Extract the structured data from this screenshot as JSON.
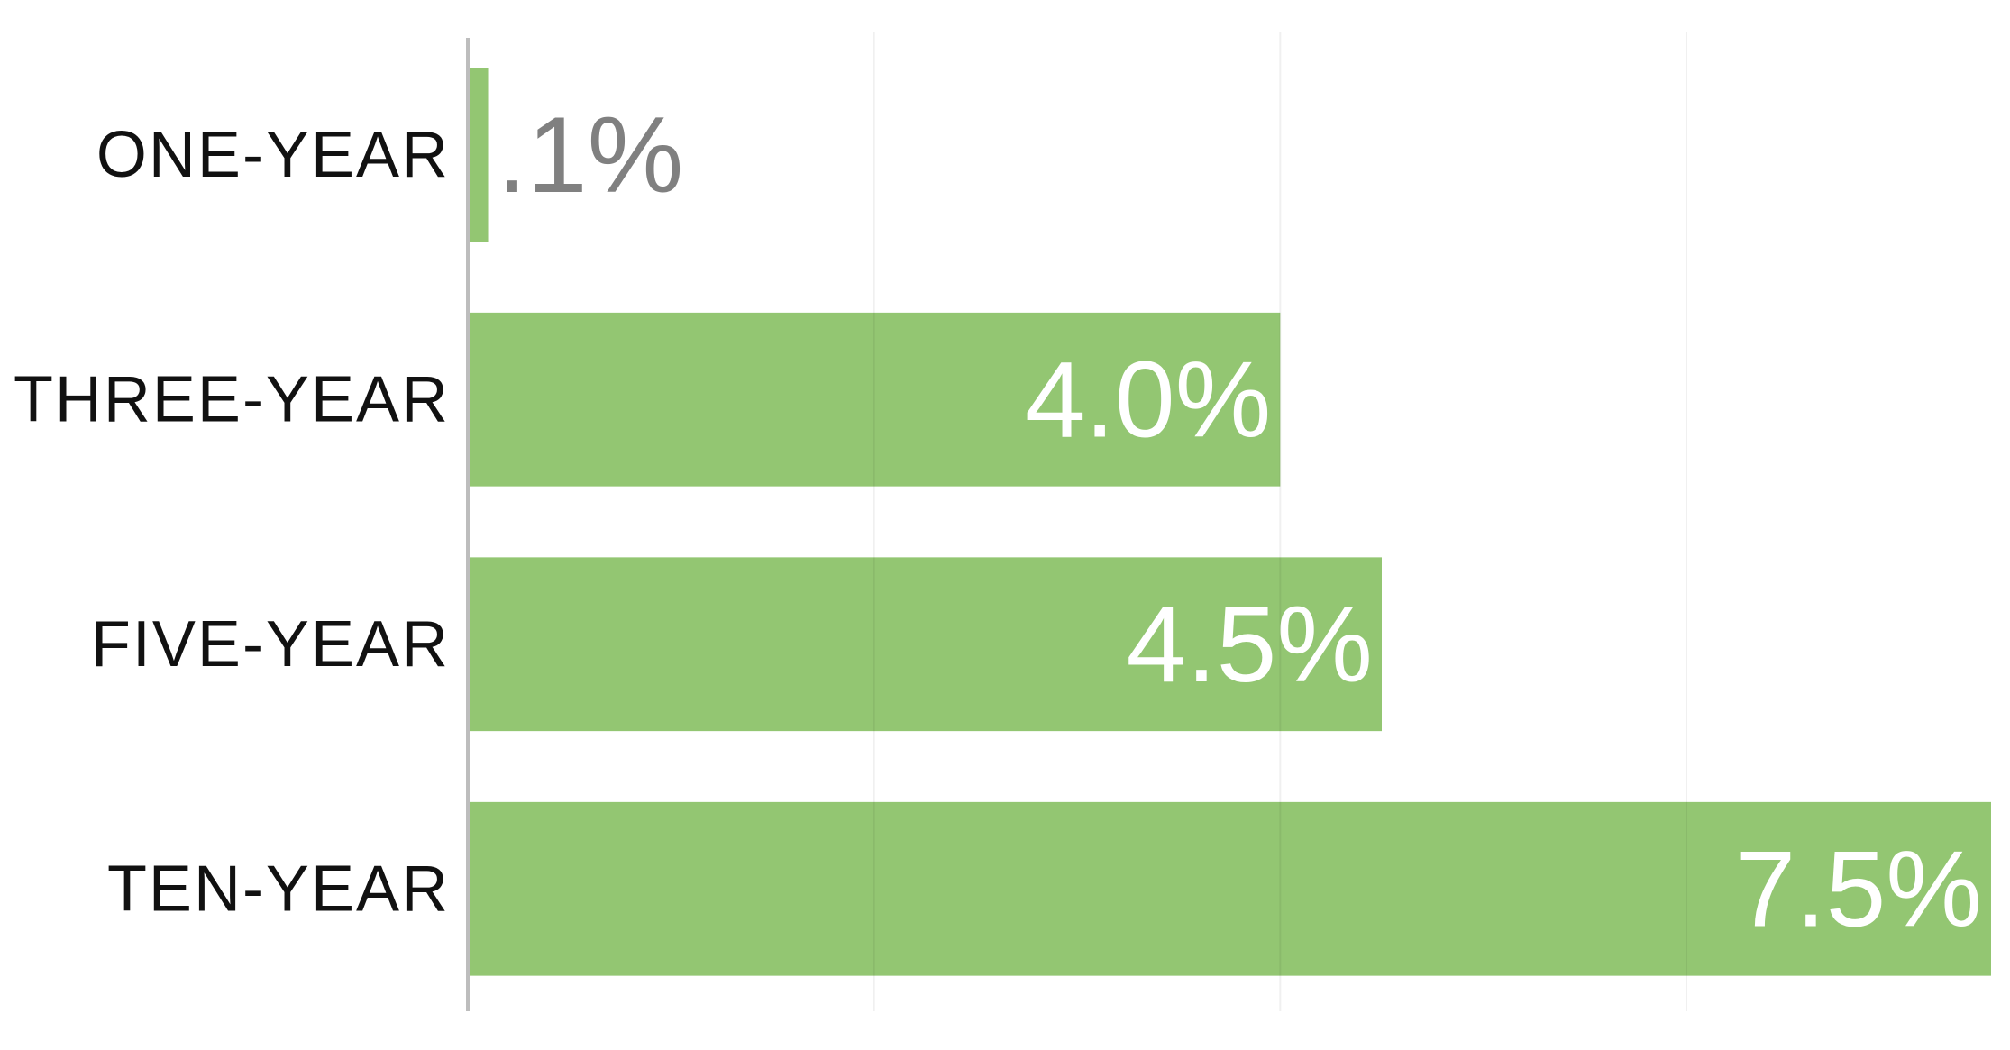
{
  "chart_data": {
    "type": "hbar",
    "categories": [
      "ONE-YEAR",
      "THREE-YEAR",
      "FIVE-YEAR",
      "TEN-YEAR"
    ],
    "values": [
      0.1,
      4.0,
      4.5,
      7.5
    ],
    "value_labels": [
      ".1%",
      "4.0%",
      "4.5%",
      "7.5%"
    ],
    "color": "#93c672",
    "xlim": [
      0,
      7.5
    ],
    "xticks": [
      0,
      2,
      4,
      6
    ],
    "grid": true
  }
}
